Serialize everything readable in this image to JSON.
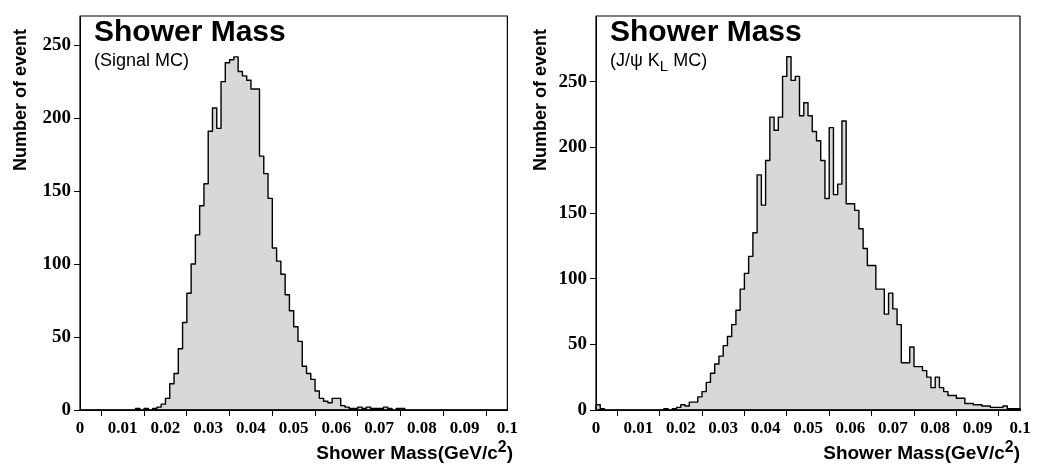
{
  "chart_data": [
    {
      "type": "histogram",
      "title": "Shower Mass",
      "subtitle": "(Signal MC)",
      "xlabel": "Shower Mass(GeV/c$^{2}$)",
      "ylabel": "Number of event",
      "color": "#000000",
      "grid": false,
      "bins": [
        0,
        0.001,
        0.002,
        0.003,
        0.004,
        0.005,
        0.006,
        0.007,
        0.008,
        0.009,
        0.01,
        0.011,
        0.012,
        0.013,
        0.014,
        0.015,
        0.016,
        0.017,
        0.018,
        0.019,
        0.02,
        0.021,
        0.022,
        0.023,
        0.024,
        0.025,
        0.026,
        0.027,
        0.028,
        0.029,
        0.03,
        0.031,
        0.032,
        0.033,
        0.034,
        0.035,
        0.036,
        0.037,
        0.038,
        0.039,
        0.04,
        0.041,
        0.042,
        0.043,
        0.044,
        0.045,
        0.046,
        0.047,
        0.048,
        0.049,
        0.05,
        0.051,
        0.052,
        0.053,
        0.054,
        0.055,
        0.056,
        0.057,
        0.058,
        0.059,
        0.06,
        0.061,
        0.062,
        0.063,
        0.064,
        0.065,
        0.066,
        0.067,
        0.068,
        0.069,
        0.07,
        0.071,
        0.072,
        0.073,
        0.074,
        0.075,
        0.076,
        0.077,
        0.078,
        0.079,
        0.08,
        0.081,
        0.082,
        0.083,
        0.084,
        0.085,
        0.086,
        0.087,
        0.088,
        0.089,
        0.09,
        0.091,
        0.092,
        0.093,
        0.094,
        0.095,
        0.096,
        0.097,
        0.098,
        0.099,
        0.1
      ],
      "values": [
        0,
        0,
        0,
        0,
        0,
        0,
        0,
        0,
        0,
        0,
        0,
        0,
        0,
        1,
        0,
        1,
        0,
        1,
        2,
        4,
        8,
        18,
        25,
        42,
        60,
        80,
        100,
        120,
        140,
        155,
        191,
        207,
        193,
        225,
        238,
        240,
        242,
        232,
        229,
        226,
        220,
        220,
        174,
        162,
        145,
        111,
        102,
        93,
        79,
        68,
        57,
        47,
        30,
        25,
        21,
        13,
        8,
        6,
        5,
        8,
        8,
        3,
        2,
        1,
        1,
        2,
        1,
        2,
        1,
        1,
        1,
        2,
        1,
        0,
        1,
        1,
        0,
        0,
        0,
        0,
        0,
        0,
        0,
        0,
        0,
        0,
        0,
        0,
        0,
        0,
        0,
        0,
        0,
        0,
        0,
        0,
        0,
        0,
        0,
        0
      ],
      "xlim": [
        0,
        0.1
      ],
      "xticks": [
        0,
        0.01,
        0.02,
        0.03,
        0.04,
        0.05,
        0.06,
        0.07,
        0.08,
        0.09,
        0.1
      ],
      "ylim": [
        0,
        270
      ],
      "yticks": [
        0,
        50,
        100,
        150,
        200,
        250
      ]
    },
    {
      "type": "histogram",
      "title": "Shower Mass",
      "subtitle": "(J/ψ K$_{L}$ MC)",
      "xlabel": "Shower Mass(GeV/c$^{2}$)",
      "ylabel": "Number of event",
      "color": "#000000",
      "grid": false,
      "bins": [
        0,
        0.001,
        0.002,
        0.003,
        0.004,
        0.005,
        0.006,
        0.007,
        0.008,
        0.009,
        0.01,
        0.011,
        0.012,
        0.013,
        0.014,
        0.015,
        0.016,
        0.017,
        0.018,
        0.019,
        0.02,
        0.021,
        0.022,
        0.023,
        0.024,
        0.025,
        0.026,
        0.027,
        0.028,
        0.029,
        0.03,
        0.031,
        0.032,
        0.033,
        0.034,
        0.035,
        0.036,
        0.037,
        0.038,
        0.039,
        0.04,
        0.041,
        0.042,
        0.043,
        0.044,
        0.045,
        0.046,
        0.047,
        0.048,
        0.049,
        0.05,
        0.051,
        0.052,
        0.053,
        0.054,
        0.055,
        0.056,
        0.057,
        0.058,
        0.059,
        0.06,
        0.061,
        0.062,
        0.063,
        0.064,
        0.065,
        0.066,
        0.067,
        0.068,
        0.069,
        0.07,
        0.071,
        0.072,
        0.073,
        0.074,
        0.075,
        0.076,
        0.077,
        0.078,
        0.079,
        0.08,
        0.081,
        0.082,
        0.083,
        0.084,
        0.085,
        0.086,
        0.087,
        0.088,
        0.089,
        0.09,
        0.091,
        0.092,
        0.093,
        0.094,
        0.095,
        0.096,
        0.097,
        0.098,
        0.099,
        0.1
      ],
      "values": [
        4,
        1,
        0,
        0,
        0,
        0,
        0,
        0,
        0,
        0,
        0,
        0,
        0,
        0,
        0,
        0,
        1,
        0,
        1,
        2,
        4,
        3,
        6,
        6,
        10,
        14,
        21,
        28,
        35,
        41,
        49,
        56,
        65,
        76,
        92,
        104,
        117,
        135,
        179,
        156,
        190,
        223,
        213,
        223,
        254,
        269,
        251,
        254,
        224,
        234,
        224,
        212,
        205,
        190,
        161,
        215,
        164,
        172,
        220,
        157,
        157,
        152,
        138,
        123,
        110,
        110,
        92,
        92,
        73,
        89,
        77,
        65,
        36,
        36,
        48,
        33,
        33,
        30,
        25,
        17,
        25,
        17,
        14,
        11,
        11,
        9,
        9,
        5,
        5,
        4,
        4,
        3,
        3,
        2,
        2,
        2,
        3,
        1,
        1,
        1
      ],
      "xlim": [
        0,
        0.1
      ],
      "xticks": [
        0,
        0.01,
        0.02,
        0.03,
        0.04,
        0.05,
        0.06,
        0.07,
        0.08,
        0.09,
        0.1
      ],
      "ylim": [
        0,
        300
      ],
      "yticks": [
        0,
        50,
        100,
        150,
        200,
        250
      ]
    }
  ]
}
